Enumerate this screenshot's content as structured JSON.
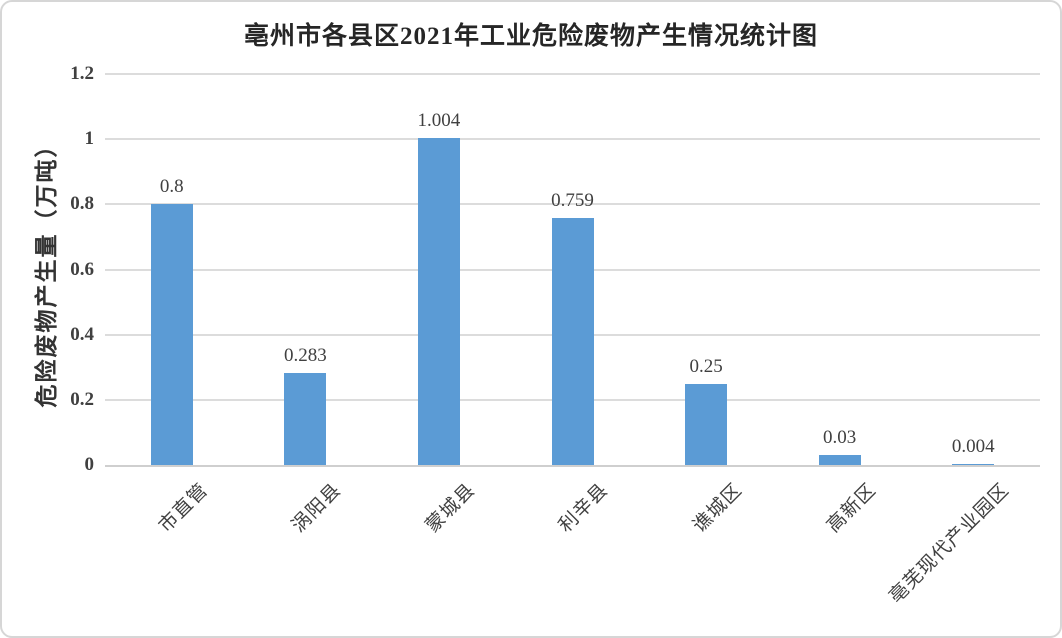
{
  "title": "亳州市各县区2021年工业危险废物产生情况统计图",
  "chart_data": {
    "type": "bar",
    "title": "亳州市各县区2021年工业危险废物产生情况统计图",
    "categories": [
      "市直管",
      "涡阳县",
      "蒙城县",
      "利辛县",
      "谯城区",
      "高新区",
      "亳芜现代产业园区"
    ],
    "values": [
      0.8,
      0.283,
      1.004,
      0.759,
      0.25,
      0.03,
      0.004
    ],
    "data_labels": [
      "0.8",
      "0.283",
      "1.004",
      "0.759",
      "0.25",
      "0.03",
      "0.004"
    ],
    "xlabel": "",
    "ylabel": "危险废物产生量（万吨）",
    "ylim": [
      0,
      1.2
    ],
    "yticks": [
      0,
      0.2,
      0.4,
      0.6,
      0.8,
      1,
      1.2
    ],
    "ytick_labels": [
      "0",
      "0.2",
      "0.4",
      "0.6",
      "0.8",
      "1",
      "1.2"
    ],
    "grid": true,
    "legend": false,
    "data_labels_shown": true,
    "colors": {
      "bar": "#5b9bd5",
      "gridline": "#dcdcdc",
      "axis_line": "#cfcfcf",
      "tick_text": "#404040",
      "title_text": "#262626"
    }
  }
}
